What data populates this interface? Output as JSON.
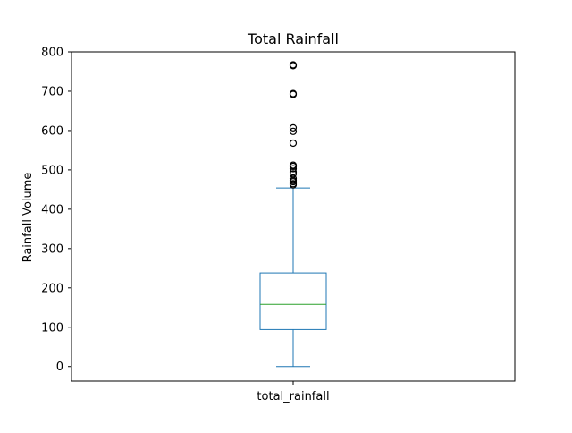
{
  "chart_data": {
    "type": "box",
    "title": "Total Rainfall",
    "xlabel": "",
    "ylabel": "Rainfall Volume",
    "categories": [
      "total_rainfall"
    ],
    "ylim": [
      -37,
      800
    ],
    "y_ticks": [
      0,
      100,
      200,
      300,
      400,
      500,
      600,
      700,
      800
    ],
    "grid": false,
    "legend": "none",
    "box": {
      "whisker_low": 0,
      "q1": 94,
      "median": 158,
      "q3": 238,
      "whisker_high": 454
    },
    "outliers": [
      462,
      465,
      470,
      473,
      478,
      490,
      495,
      503,
      509,
      512,
      568,
      598,
      607,
      692,
      694,
      765,
      767
    ],
    "colors": {
      "box": "#1f77b4",
      "median": "#2ca02c",
      "outlier": "#000000",
      "axes": "#000000"
    }
  }
}
